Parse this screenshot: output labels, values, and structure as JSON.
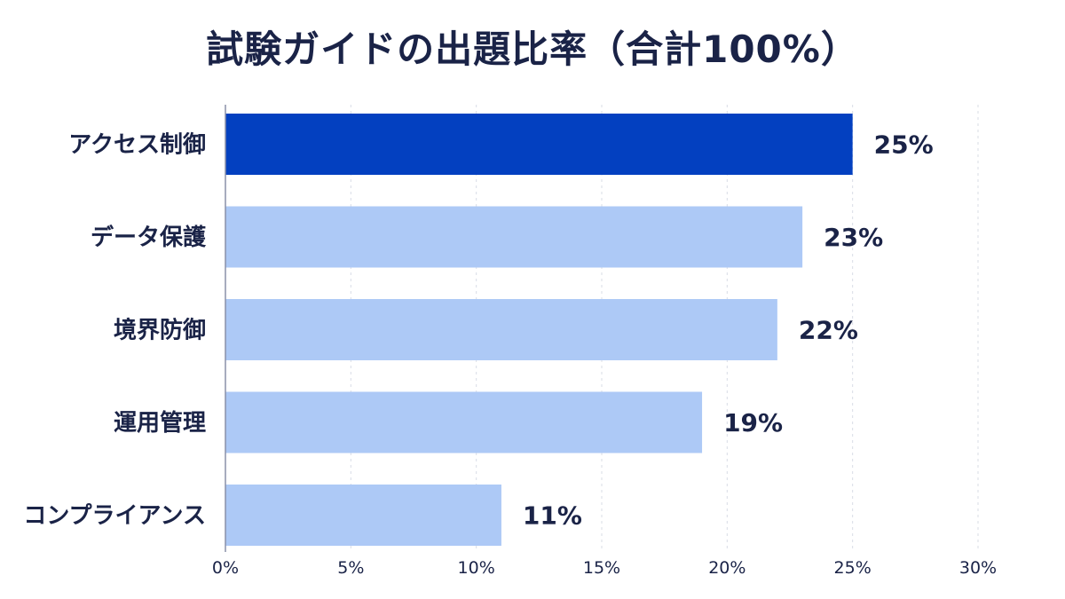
{
  "chart_data": {
    "type": "bar",
    "orientation": "horizontal",
    "title": "試験ガイドの出題比率（合計100%）",
    "categories": [
      "アクセス制御",
      "データ保護",
      "境界防御",
      "運用管理",
      "コンプライアンス"
    ],
    "values": [
      25,
      23,
      22,
      19,
      11
    ],
    "value_labels": [
      "25%",
      "23%",
      "22%",
      "19%",
      "11%"
    ],
    "xlim": [
      0,
      30
    ],
    "x_ticks": [
      0,
      5,
      10,
      15,
      20,
      25,
      30
    ],
    "x_tick_labels": [
      "0%",
      "5%",
      "10%",
      "15%",
      "20%",
      "25%",
      "30%"
    ],
    "grid": true,
    "legend": "none",
    "colors": {
      "highlight": "#0340c0",
      "default": "#adc9f6",
      "text": "#1a2347"
    }
  }
}
